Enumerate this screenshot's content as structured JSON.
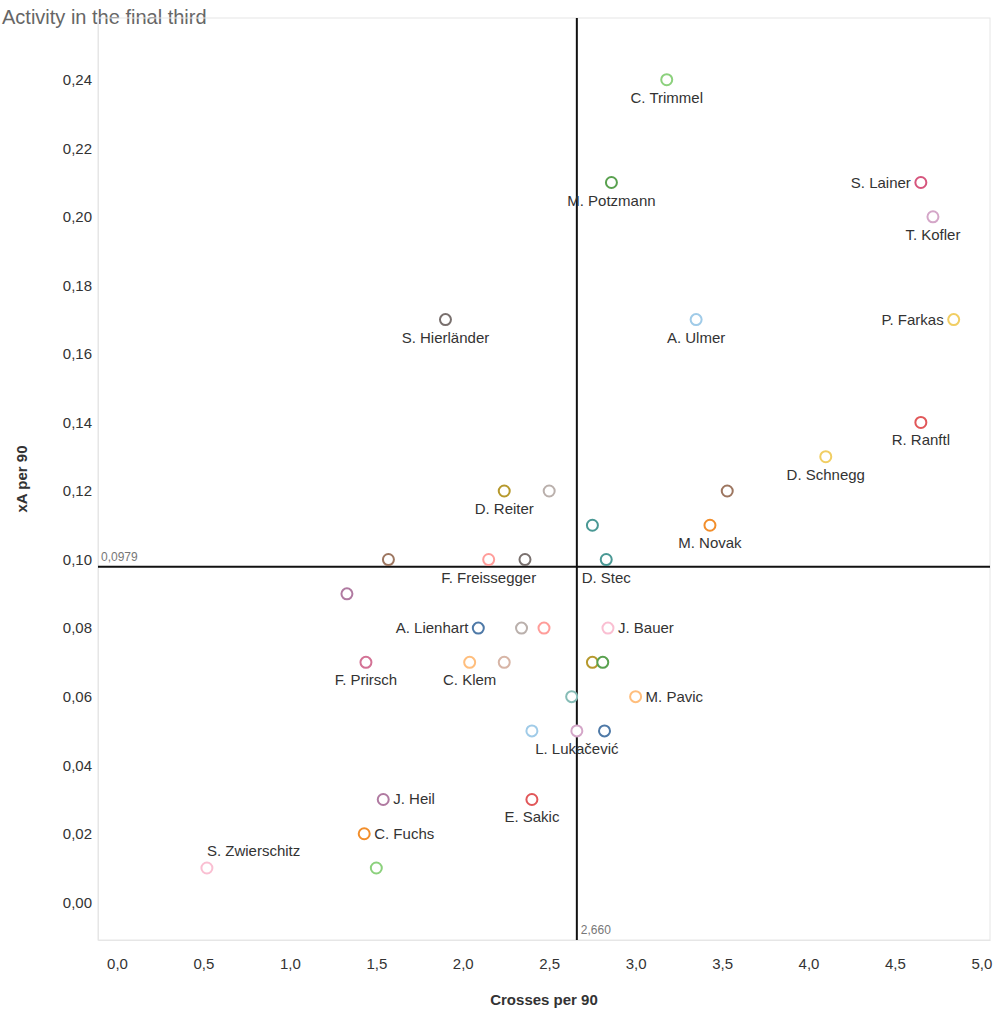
{
  "chart_data": {
    "type": "scatter",
    "title": "Activity in the final third",
    "x_label": "Crosses per 90",
    "y_label": "xA per 90",
    "x": [
      3.18,
      2.86,
      4.65,
      4.72,
      1.9,
      3.35,
      4.84,
      4.65,
      4.1,
      2.24,
      2.5,
      3.53,
      2.75,
      3.43,
      1.57,
      2.15,
      2.36,
      2.83,
      1.33,
      2.09,
      2.34,
      2.47,
      2.84,
      1.44,
      2.04,
      2.24,
      2.75,
      2.81,
      2.63,
      3.0,
      2.4,
      2.66,
      2.82,
      1.54,
      2.4,
      1.43,
      0.52,
      1.5
    ],
    "values": [
      0.24,
      0.21,
      0.21,
      0.2,
      0.17,
      0.17,
      0.17,
      0.14,
      0.13,
      0.12,
      0.12,
      0.12,
      0.11,
      0.11,
      0.1,
      0.1,
      0.1,
      0.1,
      0.09,
      0.08,
      0.08,
      0.08,
      0.08,
      0.07,
      0.07,
      0.07,
      0.07,
      0.07,
      0.06,
      0.06,
      0.05,
      0.05,
      0.05,
      0.03,
      0.03,
      0.02,
      0.01,
      0.01
    ],
    "labels": [
      "C. Trimmel",
      "M. Potzmann",
      "S. Lainer",
      "T. Kofler",
      "S. Hierländer",
      "A. Ulmer",
      "P. Farkas",
      "R. Ranftl",
      "D. Schnegg",
      "D. Reiter",
      null,
      null,
      null,
      "M. Novak",
      null,
      "F. Freissegger",
      null,
      "D. Stec",
      null,
      "A. Lienhart",
      null,
      null,
      "J. Bauer",
      "F. Prirsch",
      "C. Klem",
      null,
      null,
      null,
      null,
      "M. Pavic",
      null,
      "L. Lukačević",
      null,
      "J. Heil",
      "E. Sakic",
      "C. Fuchs",
      "S. Zwierschitz",
      null
    ],
    "colors": [
      "#8cd17d",
      "#59a14f",
      "#d6557d",
      "#d4a6c8",
      "#79706e",
      "#a0cbe8",
      "#f1ce63",
      "#e15759",
      "#f1ce63",
      "#b6992d",
      "#bab0ac",
      "#9d7660",
      "#499894",
      "#f28e2b",
      "#9d7660",
      "#ff9d9a",
      "#79706e",
      "#499894",
      "#b07aa1",
      "#4e79a7",
      "#bab0ac",
      "#ff9d9a",
      "#fabfd2",
      "#d37295",
      "#ffbe7d",
      "#d7b5a6",
      "#b6992d",
      "#59a14f",
      "#86bcb6",
      "#ffbe7d",
      "#a0cbe8",
      "#d4a6c8",
      "#4e79a7",
      "#b07aa1",
      "#e15759",
      "#f28e2b",
      "#fabfd2",
      "#8cd17d"
    ],
    "marker": "circle",
    "xlim": [
      -0.11,
      5.05
    ],
    "ylim": [
      -0.011,
      0.258
    ],
    "xticks": [
      {
        "value": 0,
        "label": "0,0"
      },
      {
        "value": 0.5,
        "label": "0,5"
      },
      {
        "value": 1,
        "label": "1,0"
      },
      {
        "value": 1.5,
        "label": "1,5"
      },
      {
        "value": 2,
        "label": "2,0"
      },
      {
        "value": 2.5,
        "label": "2,5"
      },
      {
        "value": 3,
        "label": "3,0"
      },
      {
        "value": 3.5,
        "label": "3,5"
      },
      {
        "value": 4,
        "label": "4,0"
      },
      {
        "value": 4.5,
        "label": "4,5"
      },
      {
        "value": 5,
        "label": "5,0"
      }
    ],
    "yticks": [
      {
        "value": 0,
        "label": "0,00"
      },
      {
        "value": 0.02,
        "label": "0,02"
      },
      {
        "value": 0.04,
        "label": "0,04"
      },
      {
        "value": 0.06,
        "label": "0,06"
      },
      {
        "value": 0.08,
        "label": "0,08"
      },
      {
        "value": 0.1,
        "label": "0,10"
      },
      {
        "value": 0.12,
        "label": "0,12"
      },
      {
        "value": 0.14,
        "label": "0,14"
      },
      {
        "value": 0.16,
        "label": "0,16"
      },
      {
        "value": 0.18,
        "label": "0,18"
      },
      {
        "value": 0.2,
        "label": "0,20"
      },
      {
        "value": 0.22,
        "label": "0,22"
      },
      {
        "value": 0.24,
        "label": "0,24"
      }
    ],
    "annotations": [
      {
        "axis": "x",
        "value": 2.66,
        "label": "2,660"
      },
      {
        "axis": "y",
        "value": 0.0979,
        "label": "0,0979"
      }
    ],
    "grid": false
  }
}
